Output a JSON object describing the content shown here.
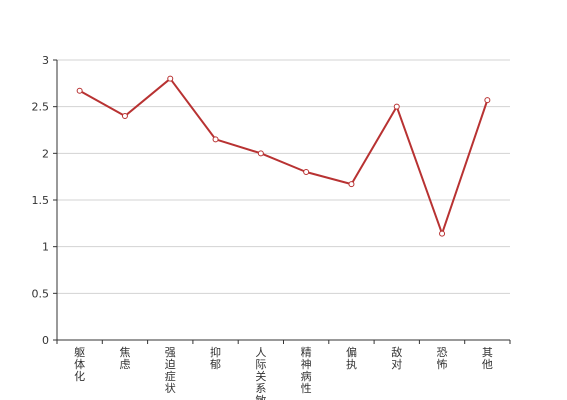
{
  "chart_data": {
    "type": "line",
    "categories": [
      "躯体化",
      "焦虑",
      "强迫症状",
      "抑郁",
      "人际关系敏感",
      "精神病性",
      "偏执",
      "敌对",
      "恐怖",
      "其他"
    ],
    "series": [
      {
        "values": [
          2.67,
          2.4,
          2.8,
          2.15,
          2.0,
          1.8,
          1.67,
          2.5,
          1.14,
          2.57
        ]
      }
    ],
    "yticks": [
      "0",
      "0.5",
      "1",
      "1.5",
      "2",
      "2.5",
      "3"
    ],
    "ylim": [
      0,
      3
    ],
    "grid": true,
    "colors": {
      "line": "#b83232",
      "grid": "#d3d3d3",
      "axis": "#333333"
    }
  }
}
